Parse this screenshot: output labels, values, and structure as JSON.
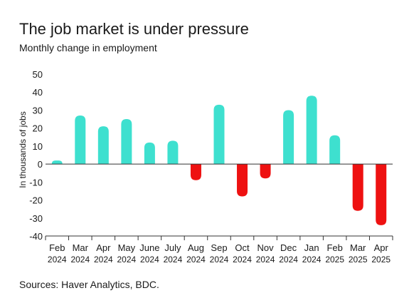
{
  "colors": {
    "positive": "#3ee0cf",
    "negative": "#ee1111",
    "axis": "#333333"
  },
  "chart_data": {
    "type": "bar",
    "title": "The job market is under pressure",
    "subtitle": "Monthly change in employment",
    "ylabel": "In thousands of jobs",
    "source": "Sources: Haver Analytics, BDC.",
    "ylim": [
      -40,
      50
    ],
    "yticks": [
      50,
      40,
      30,
      20,
      10,
      0,
      -10,
      -20,
      -30,
      -40
    ],
    "categories": [
      {
        "month": "Feb",
        "year": "2024"
      },
      {
        "month": "Mar",
        "year": "2024"
      },
      {
        "month": "Apr",
        "year": "2024"
      },
      {
        "month": "May",
        "year": "2024"
      },
      {
        "month": "June",
        "year": "2024"
      },
      {
        "month": "July",
        "year": "2024"
      },
      {
        "month": "Aug",
        "year": "2024"
      },
      {
        "month": "Sep",
        "year": "2024"
      },
      {
        "month": "Oct",
        "year": "2024"
      },
      {
        "month": "Nov",
        "year": "2024"
      },
      {
        "month": "Dec",
        "year": "2024"
      },
      {
        "month": "Jan",
        "year": "2024"
      },
      {
        "month": "Feb",
        "year": "2025"
      },
      {
        "month": "Mar",
        "year": "2025"
      },
      {
        "month": "Apr",
        "year": "2025"
      }
    ],
    "values": [
      2,
      27,
      21,
      25,
      12,
      13,
      -9,
      33,
      -18,
      -8,
      30,
      38,
      16,
      -26,
      -34
    ],
    "grid": false,
    "legend": "none"
  }
}
